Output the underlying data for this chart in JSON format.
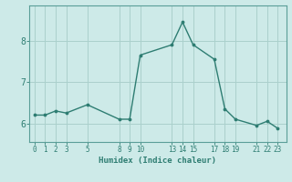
{
  "x": [
    0,
    1,
    2,
    3,
    5,
    8,
    9,
    10,
    13,
    14,
    15,
    17,
    18,
    19,
    21,
    22,
    23
  ],
  "y": [
    6.2,
    6.2,
    6.3,
    6.25,
    6.45,
    6.1,
    6.1,
    7.65,
    7.9,
    8.45,
    7.9,
    7.55,
    6.35,
    6.1,
    5.95,
    6.05,
    5.88
  ],
  "xlabel": "Humidex (Indice chaleur)",
  "xticks": [
    0,
    1,
    2,
    3,
    5,
    8,
    9,
    10,
    13,
    14,
    15,
    17,
    18,
    19,
    21,
    22,
    23
  ],
  "yticks": [
    6,
    7,
    8
  ],
  "xlim": [
    -0.5,
    23.8
  ],
  "ylim": [
    5.55,
    8.85
  ],
  "line_color": "#2e7d72",
  "marker_color": "#2e7d72",
  "bg_color": "#cdeae8",
  "grid_color": "#aad0cc",
  "label_color": "#2e7d72",
  "tick_color": "#2e7d72",
  "spine_color": "#5a9e98"
}
